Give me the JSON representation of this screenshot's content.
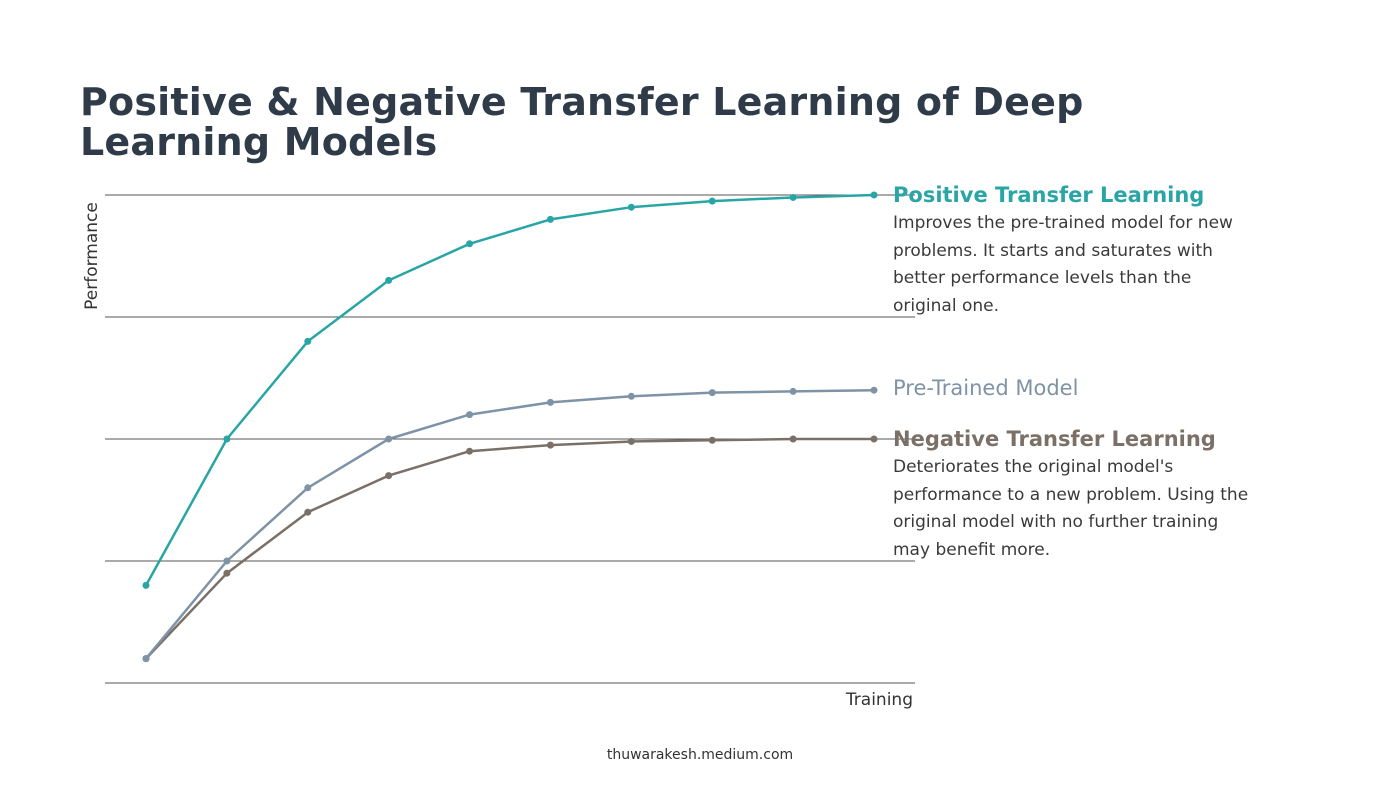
{
  "page": {
    "title": "Positive & Negative Transfer Learning of Deep Learning Models",
    "footer": "thuwarakesh.medium.com"
  },
  "annotations": {
    "positive": {
      "title": "Positive Transfer Learning",
      "description": "Improves the pre-trained model for new problems. It starts and saturates with better performance levels than the original one."
    },
    "pretrained": {
      "title": "Pre-Trained Model"
    },
    "negative": {
      "title": "Negative Transfer Learning",
      "description": "Deteriorates the original model's performance to a new problem. Using the original model with no further training may benefit more."
    }
  },
  "chart_data": {
    "type": "line",
    "xlabel": "Training",
    "ylabel": "Performance",
    "x": [
      1,
      2,
      3,
      4,
      5,
      6,
      7,
      8,
      9,
      10
    ],
    "xlim": [
      0.5,
      10.5
    ],
    "ylim": [
      0,
      4
    ],
    "grid": true,
    "legend": "right, direct labels",
    "series": [
      {
        "name": "Positive Transfer Learning",
        "color": "#2aa5a5",
        "values": [
          0.8,
          2.0,
          2.8,
          3.3,
          3.6,
          3.8,
          3.9,
          3.95,
          3.98,
          4.0
        ]
      },
      {
        "name": "Pre-Trained Model",
        "color": "#7f93a6",
        "values": [
          0.2,
          1.0,
          1.6,
          2.0,
          2.2,
          2.3,
          2.35,
          2.38,
          2.39,
          2.4
        ]
      },
      {
        "name": "Negative Transfer Learning",
        "color": "#7a7068",
        "values": [
          0.2,
          0.9,
          1.4,
          1.7,
          1.9,
          1.95,
          1.98,
          1.99,
          2.0,
          2.0
        ]
      }
    ]
  }
}
